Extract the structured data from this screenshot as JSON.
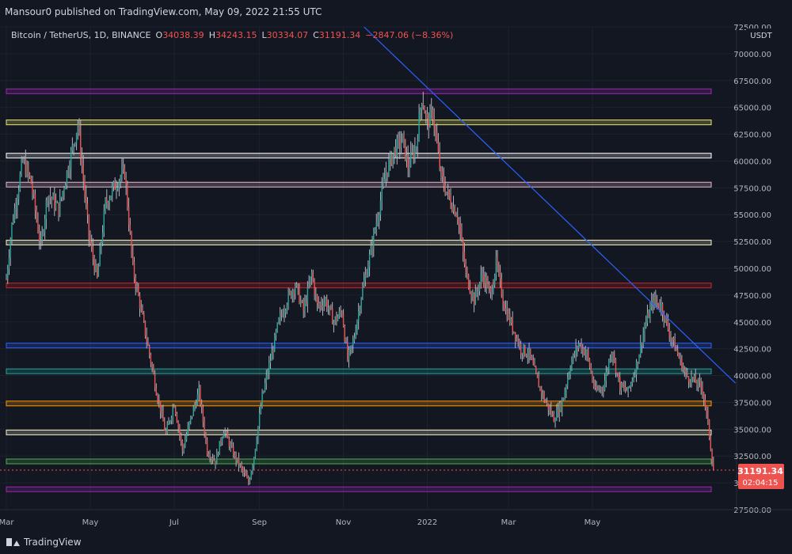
{
  "header": {
    "publisher_line": "Mansour0 published on TradingView.com, May 09, 2022 21:55 UTC"
  },
  "legend": {
    "symbol": "Bitcoin / TetherUS, 1D, BINANCE",
    "o_label": "O",
    "o_value": "34038.39",
    "h_label": "H",
    "h_value": "34243.15",
    "l_label": "L",
    "l_value": "30334.07",
    "c_label": "C",
    "c_value": "31191.34",
    "change": "−2847.06 (−8.36%)"
  },
  "footer": {
    "brand": "TradingView"
  },
  "chart_data": {
    "type": "candlestick",
    "currency": "USDT",
    "ylim": [
      27500,
      72500
    ],
    "y_ticks": [
      "27500.00",
      "30000.00",
      "32500.00",
      "35000.00",
      "37500.00",
      "40000.00",
      "42500.00",
      "45000.00",
      "47500.00",
      "50000.00",
      "52500.00",
      "55000.00",
      "57500.00",
      "60000.00",
      "62500.00",
      "65000.00",
      "67500.00",
      "70000.00",
      "72500.00"
    ],
    "x_ticks": [
      "Mar",
      "May",
      "Jul",
      "Sep",
      "Nov",
      "2022",
      "Mar",
      "May"
    ],
    "last_price_label": "31191.34",
    "countdown_label": "02:04:15",
    "last_price": 31191.34,
    "colors": {
      "up": "#26a69a",
      "down": "#ef5350",
      "wick": "#b2b5be"
    },
    "keypoints": [
      [
        0,
        49000
      ],
      [
        4,
        54000
      ],
      [
        12,
        60000
      ],
      [
        18,
        58000
      ],
      [
        25,
        52000
      ],
      [
        30,
        57000
      ],
      [
        38,
        55500
      ],
      [
        46,
        60000
      ],
      [
        52,
        63500
      ],
      [
        60,
        53000
      ],
      [
        66,
        49000
      ],
      [
        72,
        56000
      ],
      [
        80,
        58000
      ],
      [
        86,
        59000
      ],
      [
        92,
        50000
      ],
      [
        98,
        46000
      ],
      [
        104,
        42000
      ],
      [
        110,
        38000
      ],
      [
        116,
        34500
      ],
      [
        122,
        37500
      ],
      [
        128,
        33000
      ],
      [
        134,
        36000
      ],
      [
        140,
        38500
      ],
      [
        146,
        33000
      ],
      [
        152,
        32000
      ],
      [
        158,
        35000
      ],
      [
        164,
        33000
      ],
      [
        170,
        31500
      ],
      [
        176,
        30000
      ],
      [
        180,
        32500
      ],
      [
        186,
        38000
      ],
      [
        192,
        41500
      ],
      [
        198,
        45000
      ],
      [
        204,
        47000
      ],
      [
        210,
        48500
      ],
      [
        216,
        46000
      ],
      [
        222,
        49500
      ],
      [
        226,
        46500
      ],
      [
        232,
        47000
      ],
      [
        238,
        45000
      ],
      [
        244,
        46000
      ],
      [
        248,
        41500
      ],
      [
        252,
        43000
      ],
      [
        258,
        47500
      ],
      [
        264,
        51000
      ],
      [
        270,
        55000
      ],
      [
        276,
        59000
      ],
      [
        282,
        61000
      ],
      [
        288,
        62000
      ],
      [
        292,
        59500
      ],
      [
        298,
        61500
      ],
      [
        302,
        66000
      ],
      [
        306,
        63500
      ],
      [
        310,
        64500
      ],
      [
        316,
        58500
      ],
      [
        322,
        56500
      ],
      [
        328,
        55000
      ],
      [
        334,
        49500
      ],
      [
        340,
        47000
      ],
      [
        346,
        49500
      ],
      [
        352,
        47500
      ],
      [
        356,
        50500
      ],
      [
        362,
        46500
      ],
      [
        368,
        44500
      ],
      [
        374,
        42500
      ],
      [
        380,
        42000
      ],
      [
        386,
        39500
      ],
      [
        392,
        37500
      ],
      [
        398,
        36000
      ],
      [
        404,
        37500
      ],
      [
        410,
        41000
      ],
      [
        416,
        43000
      ],
      [
        422,
        42000
      ],
      [
        428,
        38500
      ],
      [
        434,
        39000
      ],
      [
        440,
        42500
      ],
      [
        446,
        39000
      ],
      [
        452,
        38500
      ],
      [
        458,
        41000
      ],
      [
        464,
        44500
      ],
      [
        470,
        47000
      ],
      [
        476,
        46500
      ],
      [
        482,
        44000
      ],
      [
        488,
        42000
      ],
      [
        494,
        40000
      ],
      [
        500,
        39500
      ],
      [
        506,
        38800
      ],
      [
        510,
        35500
      ],
      [
        514,
        31191
      ]
    ],
    "horizontal_levels": [
      {
        "price": 66500,
        "color": "#9c27b0"
      },
      {
        "price": 63600,
        "color": "#e8e86a"
      },
      {
        "price": 60500,
        "color": "#ffffff"
      },
      {
        "price": 57800,
        "color": "#e6b8c8"
      },
      {
        "price": 52400,
        "color": "#f5f0c8"
      },
      {
        "price": 48400,
        "color": "#c62828"
      },
      {
        "price": 42800,
        "color": "#2962ff"
      },
      {
        "price": 40400,
        "color": "#26a69a"
      },
      {
        "price": 37400,
        "color": "#ff9800"
      },
      {
        "price": 34700,
        "color": "#f5f0c8"
      },
      {
        "price": 32000,
        "color": "#4caf50"
      },
      {
        "price": 29400,
        "color": "#9c27b0"
      }
    ],
    "trendline": {
      "from": [
        260,
        72500
      ],
      "to": [
        530,
        39300
      ],
      "color": "#2962ff"
    },
    "grid": true
  }
}
